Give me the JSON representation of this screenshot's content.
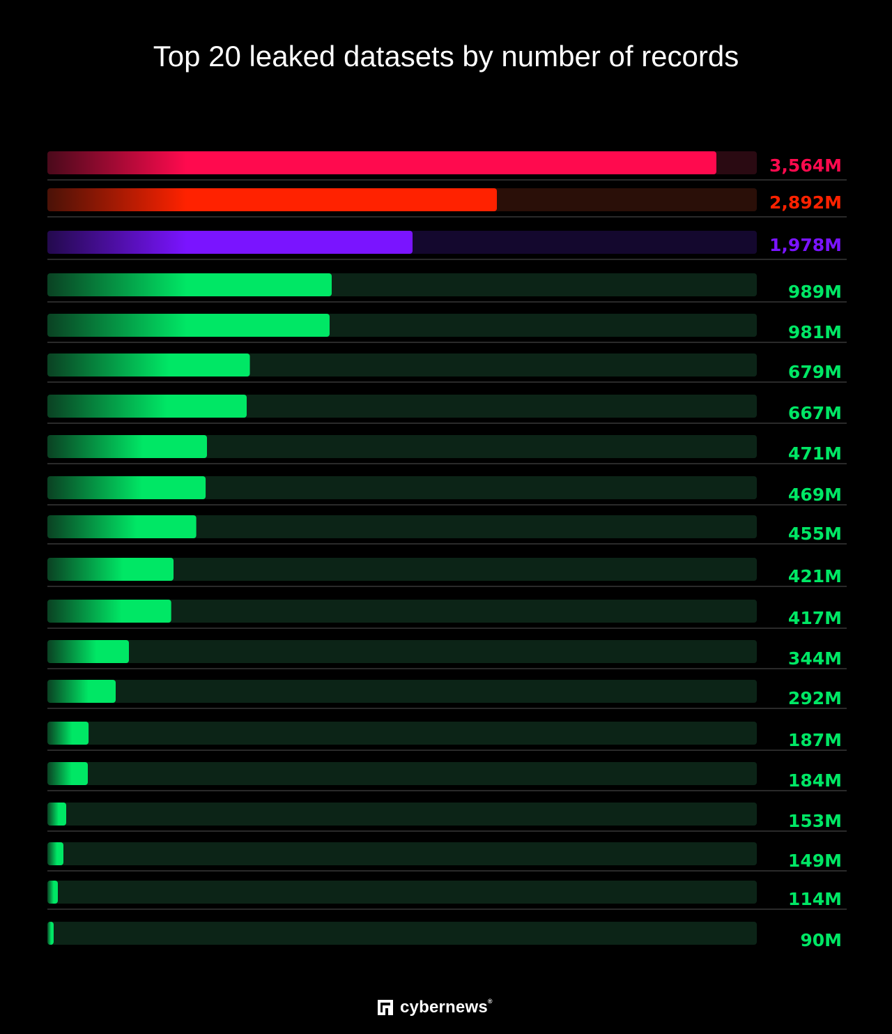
{
  "chart_data": {
    "type": "bar",
    "orientation": "horizontal",
    "title": "Top 20 leaked datasets by number of records",
    "values": [
      3564,
      2892,
      1978,
      989,
      981,
      679,
      667,
      471,
      469,
      455,
      421,
      417,
      344,
      292,
      187,
      184,
      153,
      149,
      114,
      90
    ],
    "labels": [
      "3,564M",
      "2,892M",
      "1,978M",
      "989M",
      "981M",
      "679M",
      "667M",
      "471M",
      "469M",
      "455M",
      "421M",
      "417M",
      "344M",
      "292M",
      "187M",
      "184M",
      "153M",
      "149M",
      "114M",
      "90M"
    ],
    "unit": "M",
    "colors": [
      "#ff0a4e",
      "#ff2200",
      "#7a14ff",
      "#00e765",
      "#00e765",
      "#00e765",
      "#00e765",
      "#00e765",
      "#00e765",
      "#00e765",
      "#00e765",
      "#00e765",
      "#00e765",
      "#00e765",
      "#00e765",
      "#00e765",
      "#00e765",
      "#00e765",
      "#00e765",
      "#00e765"
    ],
    "track_colors": [
      "#2a0a12",
      "#2a0f08",
      "#14082e",
      "#0c2417"
    ],
    "grid": false,
    "legend": "none"
  },
  "brand": {
    "name": "cybernews",
    "mark": "®"
  }
}
